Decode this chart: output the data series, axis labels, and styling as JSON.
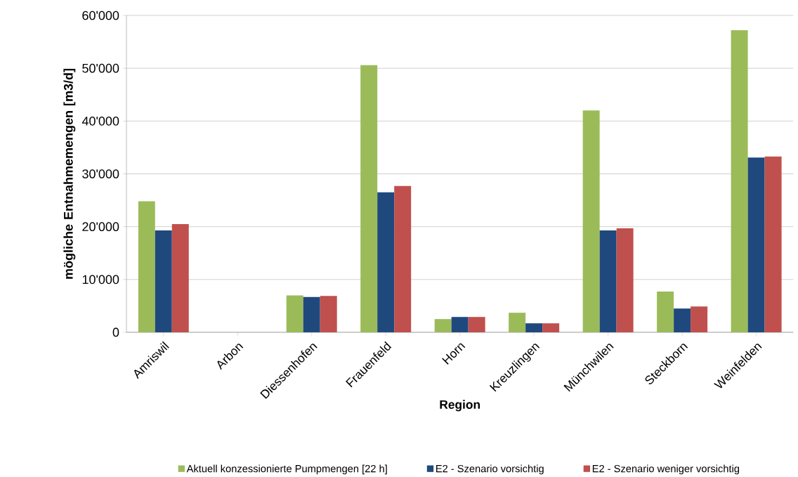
{
  "chart_data": {
    "type": "bar",
    "xlabel": "Region",
    "ylabel": "mögliche Entnahmemengen [m3/d]",
    "categories": [
      "Amriswil",
      "Arbon",
      "Diessenhofen",
      "Frauenfeld",
      "Horn",
      "Kreuzlingen",
      "Münchwilen",
      "Steckborn",
      "Weinfelden"
    ],
    "series": [
      {
        "name": "Aktuell konzessionierte Pumpmengen [22 h]",
        "color": "#9bbb59",
        "values": [
          24800,
          0,
          7000,
          50600,
          2500,
          3700,
          42000,
          7700,
          57200
        ]
      },
      {
        "name": "E2 - Szenario vorsichtig",
        "color": "#1f497d",
        "values": [
          19300,
          0,
          6700,
          26500,
          2900,
          1700,
          19300,
          4500,
          33100
        ]
      },
      {
        "name": "E2 - Szenario weniger vorsichtig",
        "color": "#c0504d",
        "values": [
          20500,
          0,
          6900,
          27700,
          2900,
          1700,
          19700,
          4900,
          33300
        ]
      }
    ],
    "ylim": [
      0,
      60000
    ],
    "yticks": [
      0,
      {
        "value": 10000,
        "label": "10'000"
      },
      {
        "value": 20000,
        "label": "20'000"
      },
      {
        "value": 30000,
        "label": "30'000"
      },
      {
        "value": 40000,
        "label": "40'000"
      },
      {
        "value": 50000,
        "label": "50'000"
      },
      {
        "value": 60000,
        "label": "60'000"
      }
    ],
    "grid": "y",
    "legend": "bottom"
  }
}
